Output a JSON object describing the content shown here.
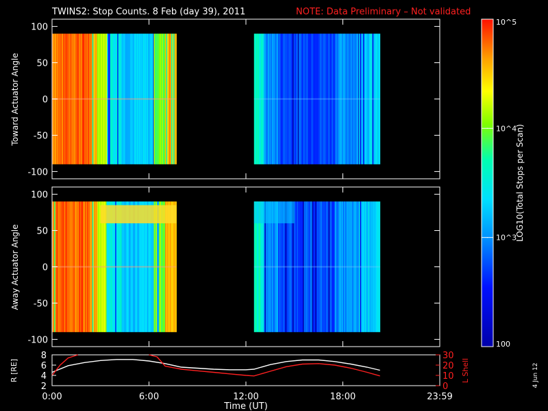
{
  "header": {
    "title": "TWINS2: Stop Counts.  8 Feb (day  39), 2011",
    "note": "NOTE: Data Preliminary – Not validated",
    "note_color": "#ff2020"
  },
  "footer": {
    "xlabel": "Time (UT)",
    "date_stamp": "4 Jun 12"
  },
  "colorbar": {
    "label": "LOG10(Total Stops per Scan)",
    "ticks": [
      "10^5",
      "10^4",
      "10^3",
      "100"
    ],
    "tick_values": [
      100000,
      10000,
      1000,
      100
    ],
    "colormap": "rainbow (blue-cyan-green-yellow-red)"
  },
  "chart_data": [
    {
      "type": "heatmap",
      "title": "",
      "ylabel": "Toward Actuator Angle",
      "xlabel": "",
      "ylim": [
        -110,
        110
      ],
      "y_ticks": [
        "100",
        "50",
        "0",
        "-50",
        "-100"
      ],
      "y_tick_values": [
        100,
        50,
        0,
        -50,
        -100
      ],
      "x_ticks": [
        "0:00",
        "6:00",
        "12:00",
        "18:00",
        "23:59"
      ],
      "x_tick_values": [
        0,
        6,
        12,
        18,
        24
      ],
      "xlim_hours": [
        0,
        24
      ],
      "angle_range": [
        -90,
        90
      ],
      "data_segments_hours": [
        [
          0.0,
          7.7
        ],
        [
          12.5,
          20.3
        ]
      ],
      "color_profile": [
        {
          "t0": 0.0,
          "t1": 0.7,
          "log": 4.75
        },
        {
          "t0": 0.7,
          "t1": 2.3,
          "log": 4.82
        },
        {
          "t0": 2.3,
          "t1": 2.8,
          "log": 4.6
        },
        {
          "t0": 2.8,
          "t1": 3.4,
          "log": 4.2
        },
        {
          "t0": 3.4,
          "t1": 4.3,
          "log": 3.5
        },
        {
          "t0": 4.3,
          "t1": 6.3,
          "log": 3.25
        },
        {
          "t0": 6.3,
          "t1": 7.0,
          "log": 4.0
        },
        {
          "t0": 7.0,
          "t1": 7.7,
          "log": 4.6
        },
        {
          "t0": 12.5,
          "t1": 13.1,
          "log": 3.6
        },
        {
          "t0": 13.1,
          "t1": 14.0,
          "log": 3.0
        },
        {
          "t0": 14.0,
          "t1": 17.5,
          "log": 2.75
        },
        {
          "t0": 17.5,
          "t1": 19.0,
          "log": 3.0
        },
        {
          "t0": 19.0,
          "t1": 20.3,
          "log": 3.3
        }
      ]
    },
    {
      "type": "heatmap",
      "title": "",
      "ylabel": "Away Actuator Angle",
      "xlabel": "",
      "ylim": [
        -110,
        110
      ],
      "y_ticks": [
        "100",
        "50",
        "0",
        "-50",
        "-100"
      ],
      "y_tick_values": [
        100,
        50,
        0,
        -50,
        -100
      ],
      "x_ticks": [
        "0:00",
        "6:00",
        "12:00",
        "18:00",
        "23:59"
      ],
      "x_tick_values": [
        0,
        6,
        12,
        18,
        24
      ],
      "xlim_hours": [
        0,
        24
      ],
      "angle_range": [
        -90,
        90
      ],
      "data_segments_hours": [
        [
          0.0,
          7.7
        ],
        [
          12.5,
          20.3
        ]
      ],
      "color_profile": [
        {
          "t0": 0.0,
          "t1": 0.7,
          "log": 4.75
        },
        {
          "t0": 0.7,
          "t1": 2.3,
          "log": 4.82
        },
        {
          "t0": 2.3,
          "t1": 2.8,
          "log": 4.6
        },
        {
          "t0": 2.8,
          "t1": 3.4,
          "log": 4.2
        },
        {
          "t0": 3.4,
          "t1": 4.3,
          "log": 3.5
        },
        {
          "t0": 4.3,
          "t1": 6.3,
          "log": 3.25
        },
        {
          "t0": 6.3,
          "t1": 7.0,
          "log": 4.0
        },
        {
          "t0": 7.0,
          "t1": 7.7,
          "log": 4.6
        },
        {
          "t0": 12.5,
          "t1": 13.1,
          "log": 3.6
        },
        {
          "t0": 13.1,
          "t1": 14.0,
          "log": 3.0
        },
        {
          "t0": 14.0,
          "t1": 17.5,
          "log": 2.75
        },
        {
          "t0": 17.5,
          "t1": 19.0,
          "log": 3.0
        },
        {
          "t0": 19.0,
          "t1": 20.3,
          "log": 3.3
        }
      ]
    },
    {
      "type": "line",
      "title": "",
      "ylabel": "R [RE]",
      "ylabel_right": "L Shell",
      "ylim": [
        2,
        8
      ],
      "ylim_right": [
        0,
        30
      ],
      "y_ticks": [
        "8",
        "6",
        "4",
        "2"
      ],
      "y_tick_values": [
        8,
        6,
        4,
        2
      ],
      "y_ticks_right": [
        "30",
        "20",
        "10",
        "0"
      ],
      "y_tick_values_right": [
        30,
        20,
        10,
        0
      ],
      "x_ticks": [
        "0:00",
        "6:00",
        "12:00",
        "18:00",
        "23:59"
      ],
      "x_tick_values": [
        0,
        6,
        12,
        18,
        24
      ],
      "series": [
        {
          "axis": "left",
          "color": "#ffffff",
          "x": [
            0,
            1,
            2,
            3,
            4,
            5,
            6,
            7,
            8,
            9,
            10,
            11,
            12,
            12.5,
            13.5,
            14.5,
            15.5,
            16.5,
            17.5,
            18.5,
            19.5,
            20.3
          ],
          "y": [
            4.6,
            5.9,
            6.5,
            6.9,
            7.1,
            7.1,
            6.8,
            6.3,
            5.6,
            5.4,
            5.2,
            5.1,
            5.1,
            5.2,
            6.1,
            6.7,
            7.0,
            7.0,
            6.7,
            6.2,
            5.6,
            5.0
          ]
        },
        {
          "axis": "right",
          "color": "#ff2020",
          "x": [
            0,
            0.5,
            1.0,
            1.6
          ],
          "y": [
            10,
            20,
            27,
            32
          ]
        },
        {
          "axis": "right",
          "color": "#ff2020",
          "x": [
            6.0,
            6.5,
            7.0,
            8.0,
            9.0,
            10.0,
            11.0,
            12.0,
            12.5,
            13.5,
            14.5,
            15.5,
            16.5,
            17.5,
            18.5,
            19.5,
            20.3
          ],
          "y": [
            32,
            28,
            19,
            16,
            14.5,
            13,
            11.5,
            10,
            9.5,
            14,
            18.5,
            21,
            21.5,
            20,
            17,
            13,
            9.5
          ]
        }
      ]
    }
  ]
}
